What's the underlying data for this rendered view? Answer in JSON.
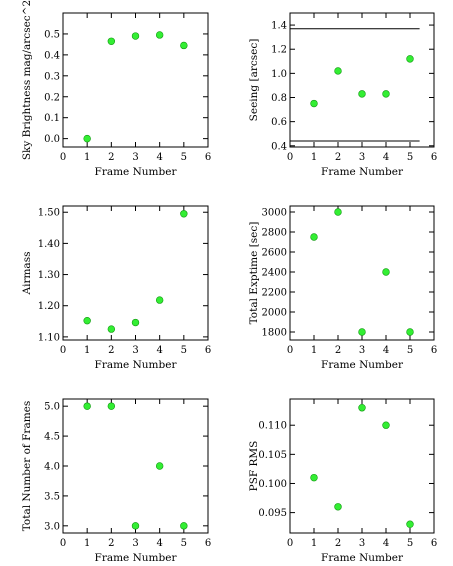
{
  "chart_data": [
    {
      "type": "scatter",
      "xlabel": "Frame Number",
      "ylabel": "Sky Brightness mag/arcsec^2",
      "xlim": [
        0,
        6
      ],
      "ylim": [
        -0.04,
        0.6
      ],
      "xticks": [
        "0",
        "1",
        "2",
        "3",
        "4",
        "5",
        "6"
      ],
      "yticks": [
        {
          "v": 0.0,
          "label": "0.0"
        },
        {
          "v": 0.1,
          "label": "0.1"
        },
        {
          "v": 0.2,
          "label": "0.2"
        },
        {
          "v": 0.3,
          "label": "0.3"
        },
        {
          "v": 0.4,
          "label": "0.4"
        },
        {
          "v": 0.5,
          "label": "0.5"
        }
      ],
      "x": [
        1,
        2,
        3,
        4,
        5
      ],
      "y": [
        0.0,
        0.465,
        0.49,
        0.495,
        0.445
      ],
      "hlines": []
    },
    {
      "type": "scatter",
      "xlabel": "Frame Number",
      "ylabel": "Seeing [arcsec]",
      "xlim": [
        0,
        6
      ],
      "ylim": [
        0.39,
        1.5
      ],
      "xticks": [
        "0",
        "1",
        "2",
        "3",
        "4",
        "5",
        "6"
      ],
      "yticks": [
        {
          "v": 0.4,
          "label": "0.4"
        },
        {
          "v": 0.6,
          "label": "0.6"
        },
        {
          "v": 0.8,
          "label": "0.8"
        },
        {
          "v": 1.0,
          "label": "1.0"
        },
        {
          "v": 1.2,
          "label": "1.2"
        },
        {
          "v": 1.4,
          "label": "1.4"
        }
      ],
      "x": [
        1,
        2,
        3,
        4,
        5
      ],
      "y": [
        0.75,
        1.02,
        0.83,
        0.83,
        1.12
      ],
      "hlines": [
        {
          "y": 1.37,
          "x0": 0,
          "x1": 5.4
        },
        {
          "y": 0.44,
          "x0": 0,
          "x1": 5.4
        }
      ]
    },
    {
      "type": "scatter",
      "xlabel": "Frame Number",
      "ylabel": "Airmass",
      "xlim": [
        0,
        6
      ],
      "ylim": [
        1.09,
        1.52
      ],
      "xticks": [
        "0",
        "1",
        "2",
        "3",
        "4",
        "5",
        "6"
      ],
      "yticks": [
        {
          "v": 1.1,
          "label": "1.10"
        },
        {
          "v": 1.2,
          "label": "1.20"
        },
        {
          "v": 1.3,
          "label": "1.30"
        },
        {
          "v": 1.4,
          "label": "1.40"
        },
        {
          "v": 1.5,
          "label": "1.50"
        }
      ],
      "x": [
        1,
        2,
        3,
        4,
        5
      ],
      "y": [
        1.152,
        1.125,
        1.146,
        1.218,
        1.495
      ],
      "hlines": []
    },
    {
      "type": "scatter",
      "xlabel": "Frame Number",
      "ylabel": "Total Exptime [sec]",
      "xlim": [
        0,
        6
      ],
      "ylim": [
        1720,
        3060
      ],
      "xticks": [
        "0",
        "1",
        "2",
        "3",
        "4",
        "5",
        "6"
      ],
      "yticks": [
        {
          "v": 1800,
          "label": "1800"
        },
        {
          "v": 2000,
          "label": "2000"
        },
        {
          "v": 2200,
          "label": "2200"
        },
        {
          "v": 2400,
          "label": "2400"
        },
        {
          "v": 2600,
          "label": "2600"
        },
        {
          "v": 2800,
          "label": "2800"
        },
        {
          "v": 3000,
          "label": "3000"
        }
      ],
      "x": [
        1,
        2,
        3,
        4,
        5
      ],
      "y": [
        2750,
        3000,
        1800,
        2400,
        1800
      ],
      "hlines": []
    },
    {
      "type": "scatter",
      "xlabel": "Frame Number",
      "ylabel": "Total Number of Frames",
      "xlim": [
        0,
        6
      ],
      "ylim": [
        2.88,
        5.12
      ],
      "xticks": [
        "0",
        "1",
        "2",
        "3",
        "4",
        "5",
        "6"
      ],
      "yticks": [
        {
          "v": 3.0,
          "label": "3.0"
        },
        {
          "v": 3.5,
          "label": "3.5"
        },
        {
          "v": 4.0,
          "label": "4.0"
        },
        {
          "v": 4.5,
          "label": "4.5"
        },
        {
          "v": 5.0,
          "label": "5.0"
        }
      ],
      "x": [
        1,
        2,
        3,
        4,
        5
      ],
      "y": [
        5,
        5,
        3,
        4,
        3
      ],
      "hlines": []
    },
    {
      "type": "scatter",
      "xlabel": "Frame Number",
      "ylabel": "PSF RMS",
      "xlim": [
        0,
        6
      ],
      "ylim": [
        0.0915,
        0.1145
      ],
      "xticks": [
        "0",
        "1",
        "2",
        "3",
        "4",
        "5",
        "6"
      ],
      "yticks": [
        {
          "v": 0.095,
          "label": "0.095"
        },
        {
          "v": 0.1,
          "label": "0.100"
        },
        {
          "v": 0.105,
          "label": "0.105"
        },
        {
          "v": 0.11,
          "label": "0.110"
        }
      ],
      "x": [
        1,
        2,
        3,
        4,
        5
      ],
      "y": [
        0.101,
        0.096,
        0.113,
        0.11,
        0.093
      ],
      "hlines": []
    }
  ]
}
